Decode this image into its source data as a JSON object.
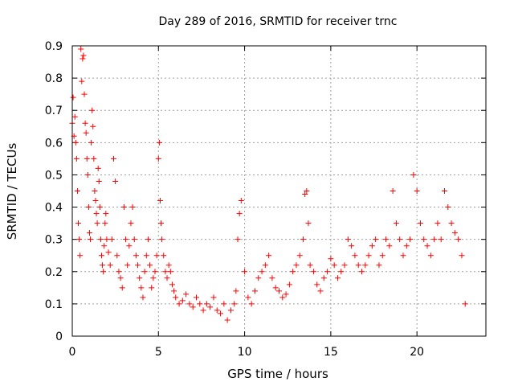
{
  "chart_data": {
    "type": "scatter",
    "title": "Day 289 of 2016, SRMTID for receiver trnc",
    "xlabel": "GPS time / hours",
    "ylabel": "SRMTID / TECUs",
    "xlim": [
      0,
      24
    ],
    "ylim": [
      0,
      0.9
    ],
    "xticks": [
      0,
      5,
      10,
      15,
      20
    ],
    "yticks": [
      0,
      0.1,
      0.2,
      0.3,
      0.4,
      0.5,
      0.6,
      0.7,
      0.8,
      0.9
    ],
    "xtick_labels": [
      "0",
      "5",
      "10",
      "15",
      "20"
    ],
    "ytick_labels": [
      "0",
      "0.1",
      "0.2",
      "0.3",
      "0.4",
      "0.5",
      "0.6",
      "0.7",
      "0.8",
      "0.9"
    ],
    "grid": true,
    "marker": "plus",
    "color": "#ff0000",
    "series": [
      {
        "name": "SRMTID",
        "x": [
          0.0,
          0.05,
          0.1,
          0.15,
          0.2,
          0.25,
          0.3,
          0.35,
          0.4,
          0.45,
          0.5,
          0.55,
          0.6,
          0.65,
          0.7,
          0.75,
          0.8,
          0.85,
          0.9,
          0.95,
          1.0,
          1.05,
          1.1,
          1.15,
          1.2,
          1.25,
          1.3,
          1.35,
          1.4,
          1.45,
          1.5,
          1.55,
          1.6,
          1.65,
          1.7,
          1.75,
          1.8,
          1.85,
          1.9,
          1.95,
          2.0,
          2.1,
          2.2,
          2.3,
          2.4,
          2.5,
          2.6,
          2.7,
          2.8,
          2.9,
          3.0,
          3.1,
          3.2,
          3.3,
          3.4,
          3.5,
          3.6,
          3.7,
          3.8,
          3.9,
          4.0,
          4.1,
          4.2,
          4.3,
          4.4,
          4.5,
          4.6,
          4.7,
          4.8,
          4.9,
          5.0,
          5.05,
          5.1,
          5.15,
          5.2,
          5.3,
          5.4,
          5.5,
          5.6,
          5.7,
          5.8,
          5.9,
          6.0,
          6.2,
          6.4,
          6.6,
          6.8,
          7.0,
          7.2,
          7.4,
          7.6,
          7.8,
          8.0,
          8.2,
          8.4,
          8.6,
          8.8,
          9.0,
          9.2,
          9.4,
          9.5,
          9.6,
          9.7,
          9.8,
          10.0,
          10.2,
          10.4,
          10.6,
          10.8,
          11.0,
          11.2,
          11.4,
          11.6,
          11.8,
          12.0,
          12.2,
          12.4,
          12.6,
          12.8,
          13.0,
          13.2,
          13.4,
          13.5,
          13.6,
          13.7,
          13.8,
          14.0,
          14.2,
          14.4,
          14.6,
          14.8,
          15.0,
          15.2,
          15.4,
          15.6,
          15.8,
          16.0,
          16.2,
          16.4,
          16.6,
          16.8,
          17.0,
          17.2,
          17.4,
          17.6,
          17.8,
          18.0,
          18.2,
          18.4,
          18.6,
          18.8,
          19.0,
          19.2,
          19.4,
          19.6,
          19.8,
          20.0,
          20.2,
          20.4,
          20.6,
          20.8,
          21.0,
          21.2,
          21.4,
          21.6,
          21.8,
          22.0,
          22.2,
          22.4,
          22.6,
          22.8
        ],
        "y": [
          0.66,
          0.74,
          0.62,
          0.68,
          0.6,
          0.55,
          0.45,
          0.35,
          0.3,
          0.25,
          0.89,
          0.79,
          0.86,
          0.87,
          0.75,
          0.66,
          0.63,
          0.55,
          0.5,
          0.4,
          0.32,
          0.3,
          0.6,
          0.7,
          0.65,
          0.55,
          0.45,
          0.42,
          0.38,
          0.35,
          0.52,
          0.48,
          0.4,
          0.3,
          0.25,
          0.22,
          0.2,
          0.28,
          0.35,
          0.38,
          0.3,
          0.26,
          0.22,
          0.3,
          0.55,
          0.48,
          0.25,
          0.2,
          0.18,
          0.15,
          0.4,
          0.3,
          0.22,
          0.28,
          0.35,
          0.4,
          0.3,
          0.25,
          0.22,
          0.18,
          0.15,
          0.12,
          0.2,
          0.25,
          0.3,
          0.22,
          0.15,
          0.18,
          0.2,
          0.25,
          0.55,
          0.6,
          0.42,
          0.35,
          0.3,
          0.25,
          0.2,
          0.18,
          0.22,
          0.2,
          0.16,
          0.14,
          0.12,
          0.1,
          0.11,
          0.13,
          0.1,
          0.09,
          0.12,
          0.1,
          0.08,
          0.1,
          0.09,
          0.12,
          0.08,
          0.07,
          0.1,
          0.05,
          0.08,
          0.1,
          0.14,
          0.3,
          0.38,
          0.42,
          0.2,
          0.12,
          0.1,
          0.14,
          0.18,
          0.2,
          0.22,
          0.25,
          0.18,
          0.15,
          0.14,
          0.12,
          0.13,
          0.16,
          0.2,
          0.22,
          0.25,
          0.3,
          0.44,
          0.45,
          0.35,
          0.22,
          0.2,
          0.16,
          0.14,
          0.18,
          0.2,
          0.24,
          0.22,
          0.18,
          0.2,
          0.22,
          0.3,
          0.28,
          0.25,
          0.22,
          0.2,
          0.22,
          0.25,
          0.28,
          0.3,
          0.22,
          0.25,
          0.3,
          0.28,
          0.45,
          0.35,
          0.3,
          0.25,
          0.28,
          0.3,
          0.5,
          0.45,
          0.35,
          0.3,
          0.28,
          0.25,
          0.3,
          0.35,
          0.3,
          0.45,
          0.4,
          0.35,
          0.32,
          0.3,
          0.25,
          0.1
        ]
      }
    ]
  }
}
